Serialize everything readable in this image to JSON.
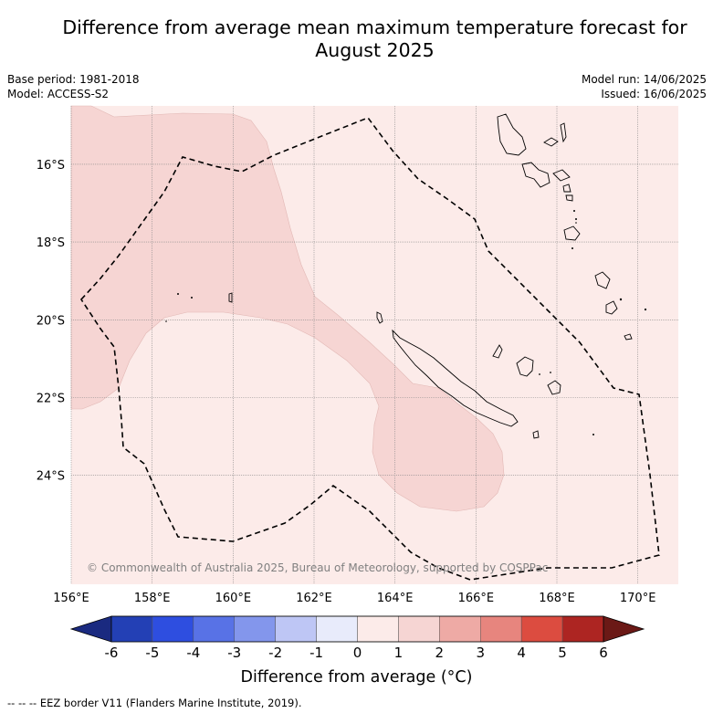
{
  "header": {
    "title_line1": "Difference from average mean maximum temperature forecast for",
    "title_line2": "August 2025",
    "base_period": "Base period: 1981-2018",
    "model": "Model: ACCESS-S2",
    "model_run": "Model run: 14/06/2025",
    "issued": "Issued: 16/06/2025"
  },
  "map": {
    "lon_range": [
      156.0,
      171.0
    ],
    "lat_range": [
      -26.8,
      -14.5
    ],
    "lon_ticks": [
      "156°E",
      "158°E",
      "160°E",
      "162°E",
      "164°E",
      "166°E",
      "168°E",
      "170°E"
    ],
    "lat_ticks": [
      "16°S",
      "18°S",
      "20°S",
      "22°S",
      "24°S"
    ],
    "gridlines": true,
    "background_category": "0 to 1",
    "shaded_region_category": "1 to 2",
    "copyright": "© Commonwealth of Australia 2025, Bureau of Meteorology, supported by COSPPac",
    "regions": [
      "New Caledonia",
      "Vanuatu",
      "Loyalty Islands"
    ]
  },
  "colorbar": {
    "ticks": [
      "-6",
      "-5",
      "-4",
      "-3",
      "-2",
      "-1",
      "0",
      "1",
      "2",
      "3",
      "4",
      "5",
      "6"
    ],
    "colors": [
      "#1a2a80",
      "#2340b5",
      "#2e4ee0",
      "#5872e6",
      "#8396ec",
      "#bec6f5",
      "#e8ebfb",
      "#fcebe9",
      "#f6d5d3",
      "#eeaaa5",
      "#e7857e",
      "#dc4c40",
      "#ad2522",
      "#6b1916"
    ],
    "title": "Difference from average (°C)"
  },
  "footer": {
    "legend": "-- -- -- EEZ border V11 (Flanders Marine Institute, 2019)."
  }
}
